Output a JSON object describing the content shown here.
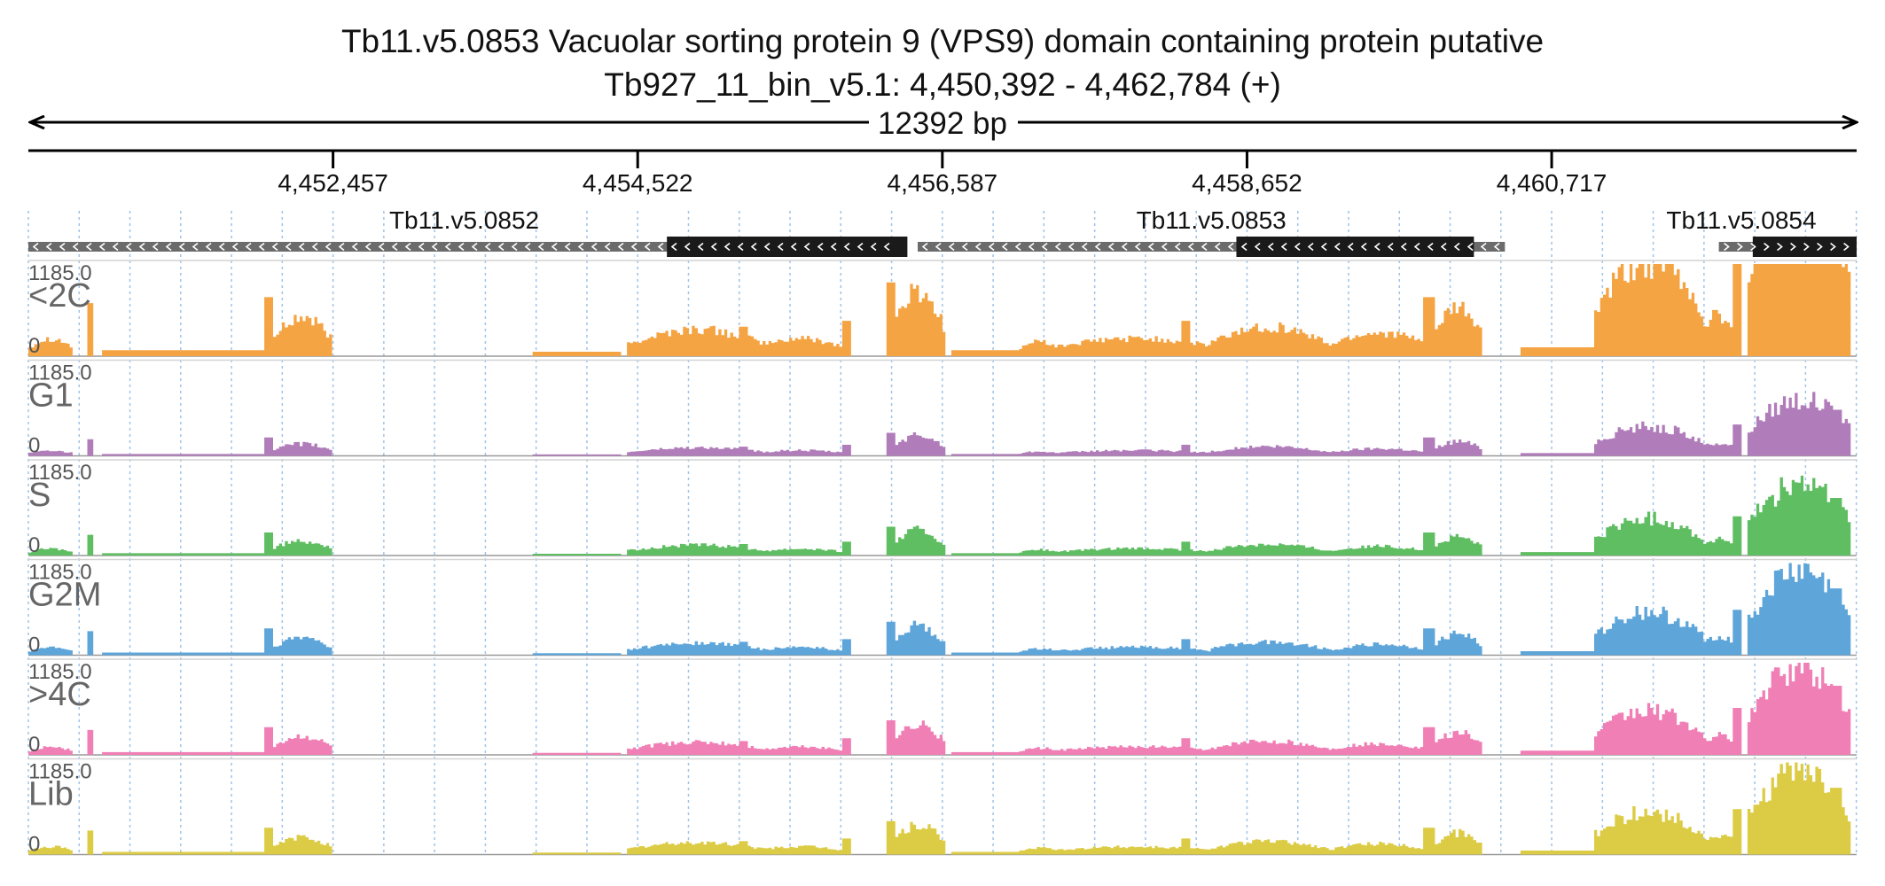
{
  "chart_data": {
    "type": "area",
    "title_line1": "Tb11.v5.0853  Vacuolar sorting protein 9 (VPS9) domain containing protein  putative",
    "title_line2": "Tb927_11_bin_v5.1: 4,450,392 - 4,462,784 (+)",
    "span_label": "12392 bp",
    "region": {
      "start": 4450392,
      "end": 4462784
    },
    "ticks": [
      {
        "pos": 4452457,
        "label": "4,452,457"
      },
      {
        "pos": 4454522,
        "label": "4,454,522"
      },
      {
        "pos": 4456587,
        "label": "4,456,587"
      },
      {
        "pos": 4458652,
        "label": "4,458,652"
      },
      {
        "pos": 4460717,
        "label": "4,460,717"
      }
    ],
    "genes": [
      {
        "name": "Tb11.v5.0852",
        "start": 4450392,
        "end": 4456300,
        "cds_start": 4454720,
        "cds_end": 4456350,
        "strand": "-"
      },
      {
        "name": "Tb11.v5.0853",
        "start": 4456420,
        "end": 4460400,
        "cds_start": 4458580,
        "cds_end": 4460190,
        "strand": "-"
      },
      {
        "name": "Tb11.v5.0854",
        "start": 4461850,
        "end": 4462784,
        "cds_start": 4462080,
        "cds_end": 4462784,
        "strand": "+"
      }
    ],
    "y_max": "1185.0",
    "y_min": "0",
    "series": [
      {
        "name": "<2C",
        "color": "#f5a443",
        "peak_scale": 3.2
      },
      {
        "name": "G1",
        "color": "#b07cba",
        "peak_scale": 1.0
      },
      {
        "name": "S",
        "color": "#5fbd62",
        "peak_scale": 1.25
      },
      {
        "name": "G2M",
        "color": "#5ea5da",
        "peak_scale": 1.45
      },
      {
        "name": ">4C",
        "color": "#f07fb5",
        "peak_scale": 1.5
      },
      {
        "name": "Lib",
        "color": "#dccc45",
        "peak_scale": 1.45
      }
    ],
    "coverage_profile": [
      {
        "start": 4450392,
        "end": 4450700,
        "shape": "hump",
        "value": 0.06
      },
      {
        "start": 4450790,
        "end": 4450830,
        "shape": "flat",
        "value": 0.18
      },
      {
        "start": 4450900,
        "end": 4452000,
        "shape": "flat",
        "value": 0.02
      },
      {
        "start": 4452000,
        "end": 4452050,
        "shape": "flat",
        "value": 0.2
      },
      {
        "start": 4452050,
        "end": 4452450,
        "shape": "hump",
        "value": 0.13
      },
      {
        "start": 4453800,
        "end": 4454400,
        "shape": "flat",
        "value": 0.015
      },
      {
        "start": 4454450,
        "end": 4455400,
        "shape": "hump",
        "value": 0.09
      },
      {
        "start": 4455200,
        "end": 4455260,
        "shape": "flat",
        "value": 0.1
      },
      {
        "start": 4455300,
        "end": 4455950,
        "shape": "hump",
        "value": 0.06
      },
      {
        "start": 4455900,
        "end": 4455960,
        "shape": "flat",
        "value": 0.12
      },
      {
        "start": 4456200,
        "end": 4456260,
        "shape": "flat",
        "value": 0.25
      },
      {
        "start": 4456250,
        "end": 4456600,
        "shape": "hump",
        "value": 0.22
      },
      {
        "start": 4456650,
        "end": 4457300,
        "shape": "flat",
        "value": 0.02
      },
      {
        "start": 4457100,
        "end": 4457400,
        "shape": "hump",
        "value": 0.05
      },
      {
        "start": 4457300,
        "end": 4458500,
        "shape": "hump",
        "value": 0.06
      },
      {
        "start": 4458200,
        "end": 4458260,
        "shape": "flat",
        "value": 0.12
      },
      {
        "start": 4458400,
        "end": 4459200,
        "shape": "hump",
        "value": 0.1
      },
      {
        "start": 4459200,
        "end": 4459900,
        "shape": "hump",
        "value": 0.08
      },
      {
        "start": 4459850,
        "end": 4459920,
        "shape": "flat",
        "value": 0.2
      },
      {
        "start": 4459920,
        "end": 4460250,
        "shape": "hump",
        "value": 0.16
      },
      {
        "start": 4460500,
        "end": 4461000,
        "shape": "flat",
        "value": 0.03
      },
      {
        "start": 4461000,
        "end": 4461750,
        "shape": "hump",
        "value": 0.32
      },
      {
        "start": 4461700,
        "end": 4462000,
        "shape": "hump",
        "value": 0.14
      },
      {
        "start": 4461950,
        "end": 4462010,
        "shape": "flat",
        "value": 0.34
      },
      {
        "start": 4462050,
        "end": 4462750,
        "shape": "hump",
        "value": 0.62
      },
      {
        "start": 4462600,
        "end": 4462680,
        "shape": "flat",
        "value": 0.5
      }
    ]
  }
}
